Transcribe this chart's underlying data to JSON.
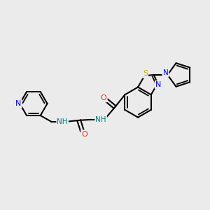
{
  "background_color": "#ebebeb",
  "bond_color": "#000000",
  "atom_colors": {
    "N": "#0000ff",
    "O": "#ff2200",
    "S": "#bbbb00",
    "NH": "#008080",
    "C": "#000000"
  },
  "figsize": [
    3.0,
    3.0
  ],
  "dpi": 100
}
